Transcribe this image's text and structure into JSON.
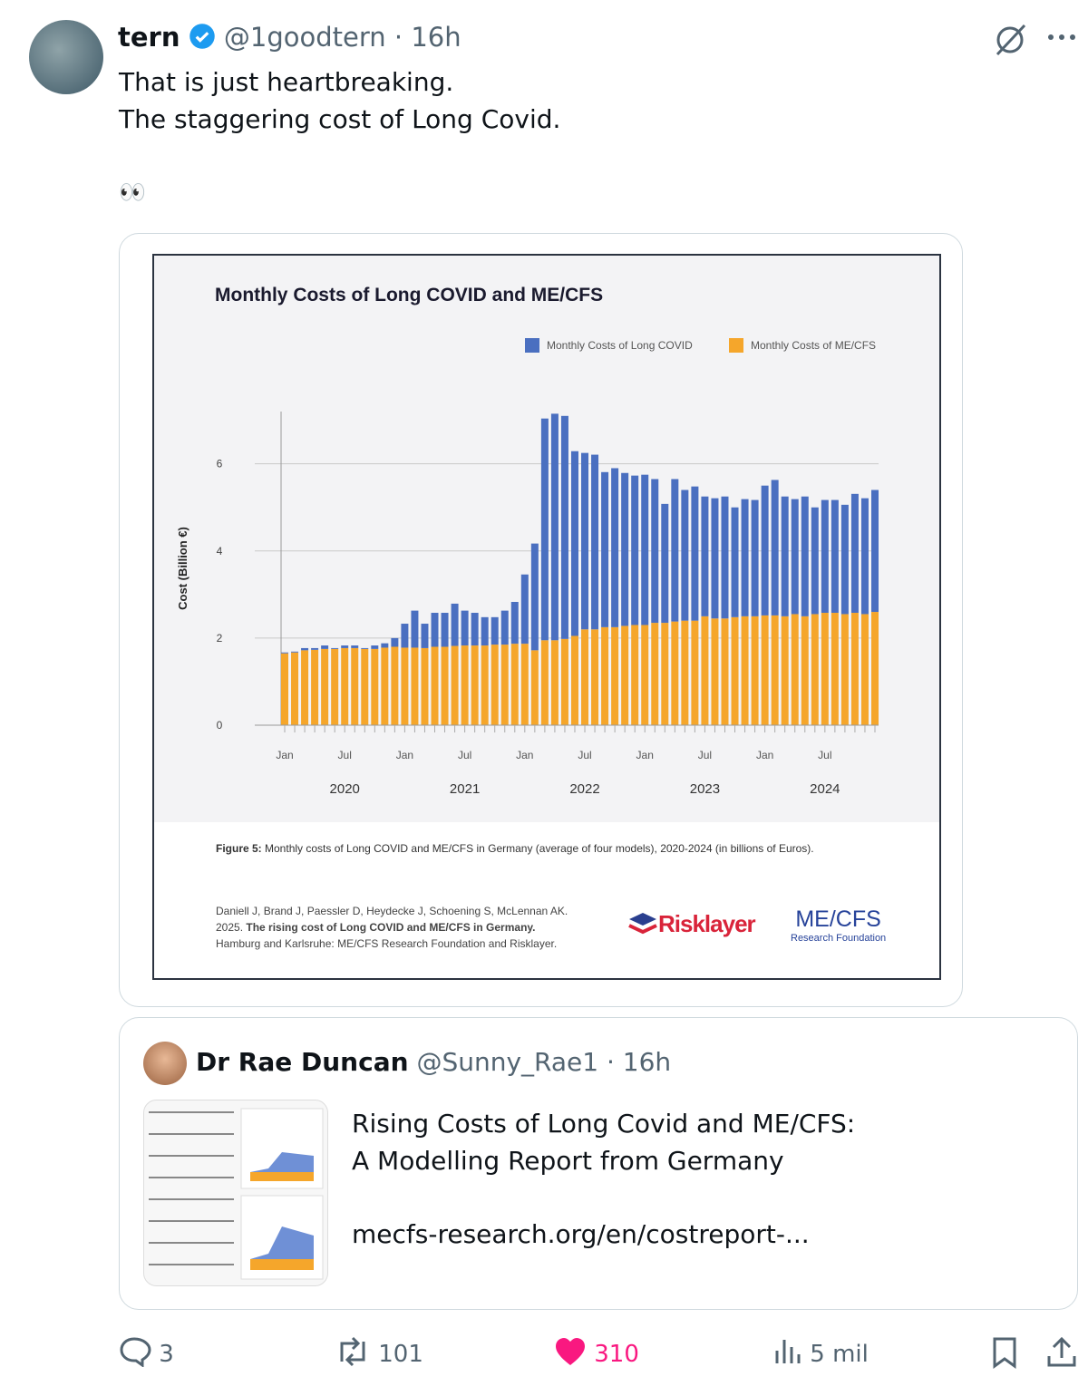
{
  "post": {
    "author": "tern",
    "handle": "@1goodtern",
    "time": "16h",
    "text_lines": [
      "That is just heartbreaking.",
      "The staggering cost of Long Covid."
    ],
    "emoji": "👀",
    "quote": {
      "author": "Dr Rae Duncan",
      "handle": "@Sunny_Rae1",
      "time": "16h",
      "link_title_lines": [
        "Rising Costs of Long Covid and ME/CFS:",
        "A Modelling Report from Germany"
      ],
      "link_url": "mecfs-research.org/en/costreport-..."
    },
    "actions": {
      "replies": 3,
      "reposts": 101,
      "likes": 310,
      "views": "5 mil"
    }
  },
  "figure": {
    "caption_label": "Figure 5:",
    "caption": "Monthly costs of Long COVID and ME/CFS in Germany (average of four models), 2020-2024 (in billions of Euros).",
    "citation": [
      "Daniell J, Brand J, Paessler D, Heydecke J, Schoening S, McLennan AK.",
      "2025.",
      "The rising cost of Long COVID and ME/CFS in Germany.",
      "Hamburg and Karlsruhe: ME/CFS Research Foundation and Risklayer."
    ],
    "logos": [
      "Risklayer",
      "ME/CFS",
      "Research Foundation"
    ]
  },
  "chart_data": {
    "type": "stacked-bar",
    "title": "Monthly Costs of Long COVID and ME/CFS",
    "y_label": "Cost (Billion €)",
    "categories": [
      "Jan",
      null,
      null,
      null,
      null,
      null,
      "Jul",
      null,
      null,
      null,
      null,
      null,
      "Jan",
      null,
      null,
      null,
      null,
      null,
      "Jul",
      null,
      null,
      null,
      null,
      null,
      "Jan",
      null,
      null,
      null,
      null,
      null,
      "Jul",
      null,
      null,
      null,
      null,
      null,
      "Jan",
      null,
      null,
      null,
      null,
      null,
      "Jul",
      null,
      null,
      null,
      null,
      null,
      "Jan",
      null,
      null,
      null,
      null,
      null,
      "Jul",
      null,
      null,
      null,
      null,
      null
    ],
    "year_labels": [
      "2020",
      "2021",
      "2022",
      "2023",
      "2024"
    ],
    "series": [
      {
        "name": "Monthly Costs of Long COVID",
        "color": "#4a6fc0",
        "values": [
          0.02,
          0.02,
          0.05,
          0.04,
          0.08,
          0.02,
          0.06,
          0.06,
          0.02,
          0.08,
          0.1,
          0.2,
          0.55,
          0.85,
          0.56,
          0.78,
          0.78,
          0.97,
          0.8,
          0.75,
          0.65,
          0.63,
          0.78,
          0.96,
          1.59,
          2.45,
          5.09,
          5.2,
          5.12,
          4.24,
          4.05,
          4.01,
          3.56,
          3.65,
          3.51,
          3.43,
          3.45,
          3.3,
          2.73,
          3.27,
          3.0,
          3.08,
          2.75,
          2.76,
          2.8,
          2.52,
          2.69,
          2.67,
          2.98,
          3.11,
          2.75,
          2.64,
          2.75,
          2.45,
          2.59,
          2.59,
          2.51,
          2.73,
          2.66,
          2.8
        ]
      },
      {
        "name": "Monthly Costs of ME/CFS",
        "color": "#f5a62b",
        "values": [
          1.65,
          1.67,
          1.72,
          1.73,
          1.75,
          1.75,
          1.77,
          1.77,
          1.75,
          1.75,
          1.78,
          1.8,
          1.78,
          1.78,
          1.77,
          1.8,
          1.8,
          1.82,
          1.83,
          1.83,
          1.83,
          1.85,
          1.85,
          1.87,
          1.87,
          1.72,
          1.95,
          1.95,
          1.98,
          2.05,
          2.2,
          2.2,
          2.25,
          2.25,
          2.28,
          2.3,
          2.3,
          2.35,
          2.35,
          2.38,
          2.4,
          2.4,
          2.5,
          2.45,
          2.45,
          2.48,
          2.5,
          2.5,
          2.52,
          2.52,
          2.5,
          2.55,
          2.5,
          2.55,
          2.58,
          2.58,
          2.55,
          2.58,
          2.55,
          2.6
        ]
      }
    ],
    "ylim": [
      0,
      7.2
    ],
    "yticks": [
      0,
      2,
      4,
      6
    ],
    "grid": true
  }
}
